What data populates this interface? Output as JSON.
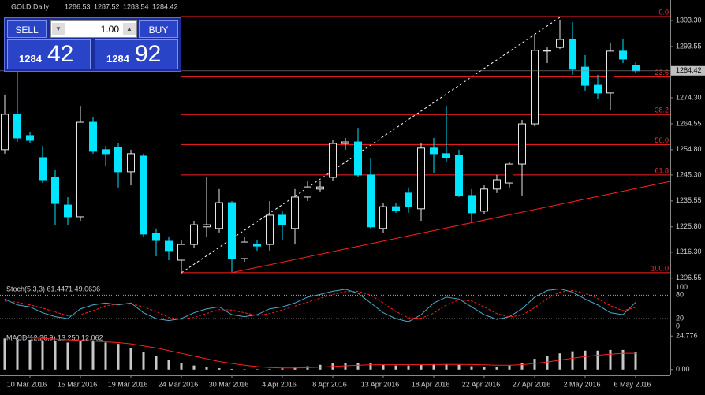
{
  "chart_data": {
    "type": "candlestick",
    "title": "GOLD,Daily",
    "categories": [
      null,
      null,
      "10 Mar 2016",
      null,
      null,
      null,
      "15 Mar 2016",
      null,
      null,
      null,
      "19 Mar 2016",
      null,
      null,
      null,
      "24 Mar 2016",
      null,
      null,
      null,
      "30 Mar 2016",
      null,
      null,
      null,
      "4 Apr 2016",
      null,
      null,
      null,
      "8 Apr 2016",
      null,
      null,
      null,
      "13 Apr 2016",
      null,
      null,
      null,
      "18 Apr 2016",
      null,
      null,
      null,
      "22 Apr 2016",
      null,
      null,
      null,
      "27 Apr 2016",
      null,
      null,
      null,
      "2 May 2016",
      null,
      null,
      null,
      "6 May 2016"
    ],
    "open": [
      1254.8,
      1268.1,
      1260.1,
      1251.8,
      1244.4,
      1234.0,
      1229.6,
      1265.1,
      1254.8,
      1255.6,
      1246.5,
      1252.4,
      1223.4,
      1220.4,
      1213.3,
      1219.2,
      1225.8,
      1225.2,
      1234.9,
      1213.9,
      1219.2,
      1219.2,
      1230.2,
      1225.2,
      1237.0,
      1240.0,
      1244.4,
      1257.1,
      1257.7,
      1245.3,
      1225.2,
      1233.4,
      1238.5,
      1232.6,
      1255.4,
      1253.3,
      1252.7,
      1237.6,
      1231.7,
      1240.0,
      1242.3,
      1249.4,
      1264.5,
      1291.8,
      1293.2,
      1296.2,
      1285.8,
      1279.0,
      1276.1,
      1291.8,
      1286.53
    ],
    "high": [
      1275.5,
      1284.4,
      1261.3,
      1256.2,
      1247.4,
      1237.0,
      1271.0,
      1267.2,
      1256.2,
      1257.1,
      1254.8,
      1253.3,
      1225.2,
      1222.2,
      1220.7,
      1228.1,
      1244.4,
      1240.0,
      1235.5,
      1222.2,
      1220.7,
      1235.5,
      1231.7,
      1240.0,
      1242.9,
      1242.9,
      1258.3,
      1259.2,
      1263.0,
      1251.8,
      1234.6,
      1234.6,
      1240.6,
      1257.1,
      1259.2,
      1271.0,
      1254.8,
      1240.0,
      1241.4,
      1245.3,
      1250.3,
      1266.0,
      1297.7,
      1293.2,
      1303.6,
      1302.7,
      1290.3,
      1282.9,
      1294.7,
      1296.2,
      1287.52
    ],
    "low": [
      1253.3,
      1257.7,
      1257.1,
      1242.3,
      1226.6,
      1226.6,
      1228.1,
      1253.3,
      1248.8,
      1240.6,
      1241.4,
      1222.2,
      1214.8,
      1213.3,
      1208.0,
      1217.8,
      1222.2,
      1223.7,
      1208.9,
      1212.7,
      1216.9,
      1216.9,
      1220.7,
      1219.2,
      1235.5,
      1239.1,
      1242.9,
      1254.8,
      1244.4,
      1225.2,
      1223.4,
      1231.1,
      1231.1,
      1228.1,
      1245.9,
      1250.3,
      1237.0,
      1227.5,
      1230.5,
      1238.5,
      1240.6,
      1237.6,
      1263.6,
      1287.3,
      1292.6,
      1282.9,
      1277.0,
      1274.0,
      1269.6,
      1287.3,
      1283.54
    ],
    "close": [
      1268.1,
      1259.2,
      1258.3,
      1243.5,
      1234.6,
      1229.6,
      1265.1,
      1254.2,
      1253.3,
      1246.5,
      1253.3,
      1223.1,
      1220.7,
      1216.9,
      1219.2,
      1226.6,
      1226.6,
      1234.9,
      1213.9,
      1220.1,
      1218.6,
      1230.2,
      1226.6,
      1237.0,
      1240.8,
      1240.8,
      1257.1,
      1257.7,
      1245.3,
      1225.8,
      1233.4,
      1232.0,
      1233.4,
      1255.4,
      1253.3,
      1251.8,
      1237.6,
      1231.1,
      1240.0,
      1243.5,
      1249.4,
      1264.5,
      1292.1,
      1292.1,
      1296.2,
      1285.0,
      1279.0,
      1276.1,
      1291.8,
      1288.8,
      1284.42
    ],
    "bull_color": "#000000",
    "bear_color": "#00e5ff",
    "ylim": [
      1205.9,
      1311.0
    ],
    "yticks": [
      {
        "value": 1303.3,
        "label": "1303.30"
      },
      {
        "value": 1293.55,
        "label": "1293.55"
      },
      {
        "value": 1274.3,
        "label": "1274.30"
      },
      {
        "value": 1264.55,
        "label": "1264.55"
      },
      {
        "value": 1254.8,
        "label": "1254.80"
      },
      {
        "value": 1245.3,
        "label": "1245.30"
      },
      {
        "value": 1235.55,
        "label": "1235.55"
      },
      {
        "value": 1225.8,
        "label": "1225.80"
      },
      {
        "value": 1216.3,
        "label": "1216.30"
      },
      {
        "value": 1206.55,
        "label": "1206.55"
      }
    ],
    "fibonacci": [
      {
        "label": "0.0",
        "value": 1304.8
      },
      {
        "label": "23.6",
        "value": 1282.1
      },
      {
        "label": "38.2",
        "value": 1268.0
      },
      {
        "label": "50.0",
        "value": 1256.7
      },
      {
        "label": "61.8",
        "value": 1245.3
      },
      {
        "label": "100.0",
        "value": 1208.6
      }
    ],
    "stochastic": {
      "title": "Stoch(5,3,3) 61.4471 49.0636",
      "ylim": [
        -6,
        115
      ],
      "yticks": [
        0,
        20,
        80,
        100
      ],
      "main": {
        "color": "#4fa8c8",
        "values": [
          70,
          55,
          50,
          35,
          25,
          20,
          45,
          55,
          60,
          55,
          60,
          35,
          20,
          15,
          20,
          35,
          45,
          50,
          30,
          25,
          30,
          45,
          50,
          60,
          75,
          82,
          90,
          95,
          85,
          60,
          35,
          20,
          12,
          30,
          60,
          75,
          70,
          50,
          30,
          18,
          25,
          45,
          75,
          92,
          96,
          88,
          70,
          55,
          35,
          30,
          61.4471
        ]
      },
      "signal": {
        "color": "#ff2020",
        "values": [
          65,
          62,
          55,
          47,
          37,
          27,
          30,
          40,
          53,
          57,
          58,
          50,
          38,
          23,
          18,
          23,
          33,
          43,
          42,
          35,
          28,
          33,
          42,
          52,
          62,
          72,
          82,
          89,
          90,
          80,
          60,
          38,
          22,
          21,
          34,
          55,
          68,
          65,
          50,
          33,
          24,
          29,
          48,
          71,
          88,
          92,
          85,
          71,
          53,
          40,
          49.0636
        ]
      }
    },
    "macd": {
      "title": "MACD(12,26,9) 13.250 12.062",
      "ylim": [
        -4.2,
        29
      ],
      "yticks": [
        {
          "value": 0,
          "label": "0.00"
        },
        24.776
      ],
      "histogram": {
        "color": "#c8c8c8",
        "values": [
          23,
          22,
          22,
          21,
          21,
          20,
          21,
          21,
          20,
          19,
          16,
          13,
          10,
          7,
          5,
          3,
          2,
          1,
          0.5,
          0.3,
          0.2,
          0.4,
          0.8,
          1.5,
          2.5,
          3.5,
          4.5,
          5,
          5,
          4.5,
          3.5,
          3,
          3,
          3.5,
          4,
          4,
          3.5,
          2.5,
          2,
          2,
          3,
          5,
          8,
          10,
          12,
          13.5,
          14,
          14,
          14.5,
          14.5,
          13.25
        ]
      },
      "signal": {
        "color": "#ff2020",
        "values": [
          24,
          24,
          23.5,
          23,
          22.5,
          22,
          21.5,
          21,
          20.5,
          20,
          19,
          17.5,
          16,
          14,
          12,
          10,
          8,
          6,
          4.5,
          3.2,
          2.2,
          1.5,
          1.2,
          1.2,
          1.4,
          1.8,
          2.3,
          2.8,
          3.2,
          3.5,
          3.6,
          3.6,
          3.6,
          3.6,
          3.7,
          3.8,
          3.8,
          3.7,
          3.5,
          3.2,
          3.2,
          3.6,
          4.5,
          5.6,
          7,
          8.4,
          9.6,
          10.6,
          11.4,
          12,
          12.062
        ]
      }
    }
  },
  "trade_panel": {
    "sell": "SELL",
    "buy": "BUY",
    "lot": "1.00",
    "bid_big": "1284",
    "bid_small": "42",
    "ask_big": "1284",
    "ask_small": "92"
  }
}
